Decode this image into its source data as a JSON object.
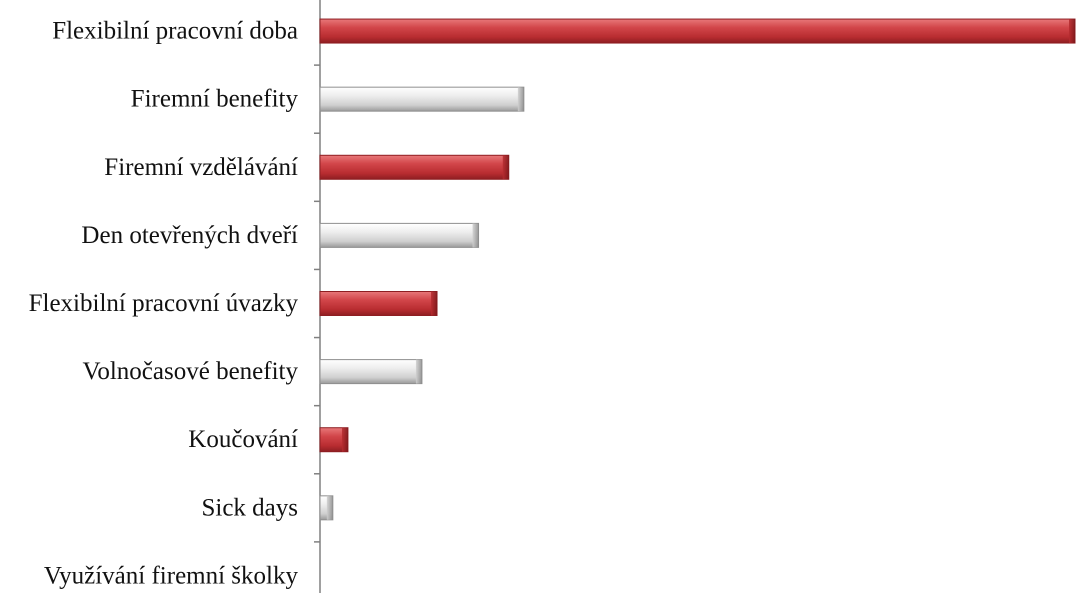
{
  "chart_data": {
    "type": "bar",
    "orientation": "horizontal",
    "title": "",
    "xlabel": "",
    "ylabel": "",
    "categories": [
      "Flexibilní pracovní doba",
      "Firemní benefity",
      "Firemní vzdělávání",
      "Den otevřených dveří",
      "Flexibilní pracovní úvazky",
      "Volnočasové benefity",
      "Koučování",
      "Sick days",
      "Využívání firemní školky"
    ],
    "values": [
      100,
      27,
      25,
      21,
      15.5,
      13.5,
      3.7,
      1.7,
      0
    ],
    "xlim": [
      0,
      100
    ],
    "bar_colors": [
      "red",
      "gray",
      "red",
      "gray",
      "red",
      "gray",
      "red",
      "gray",
      "red"
    ],
    "grid": false,
    "legend": "none"
  },
  "colors": {
    "red": "#c8363a",
    "red_light": "#e8787a",
    "red_dark": "#8e1e22",
    "gray": "#d9d9d9",
    "gray_light": "#ffffff",
    "gray_dark": "#9a9a9a",
    "axis": "#808080"
  }
}
